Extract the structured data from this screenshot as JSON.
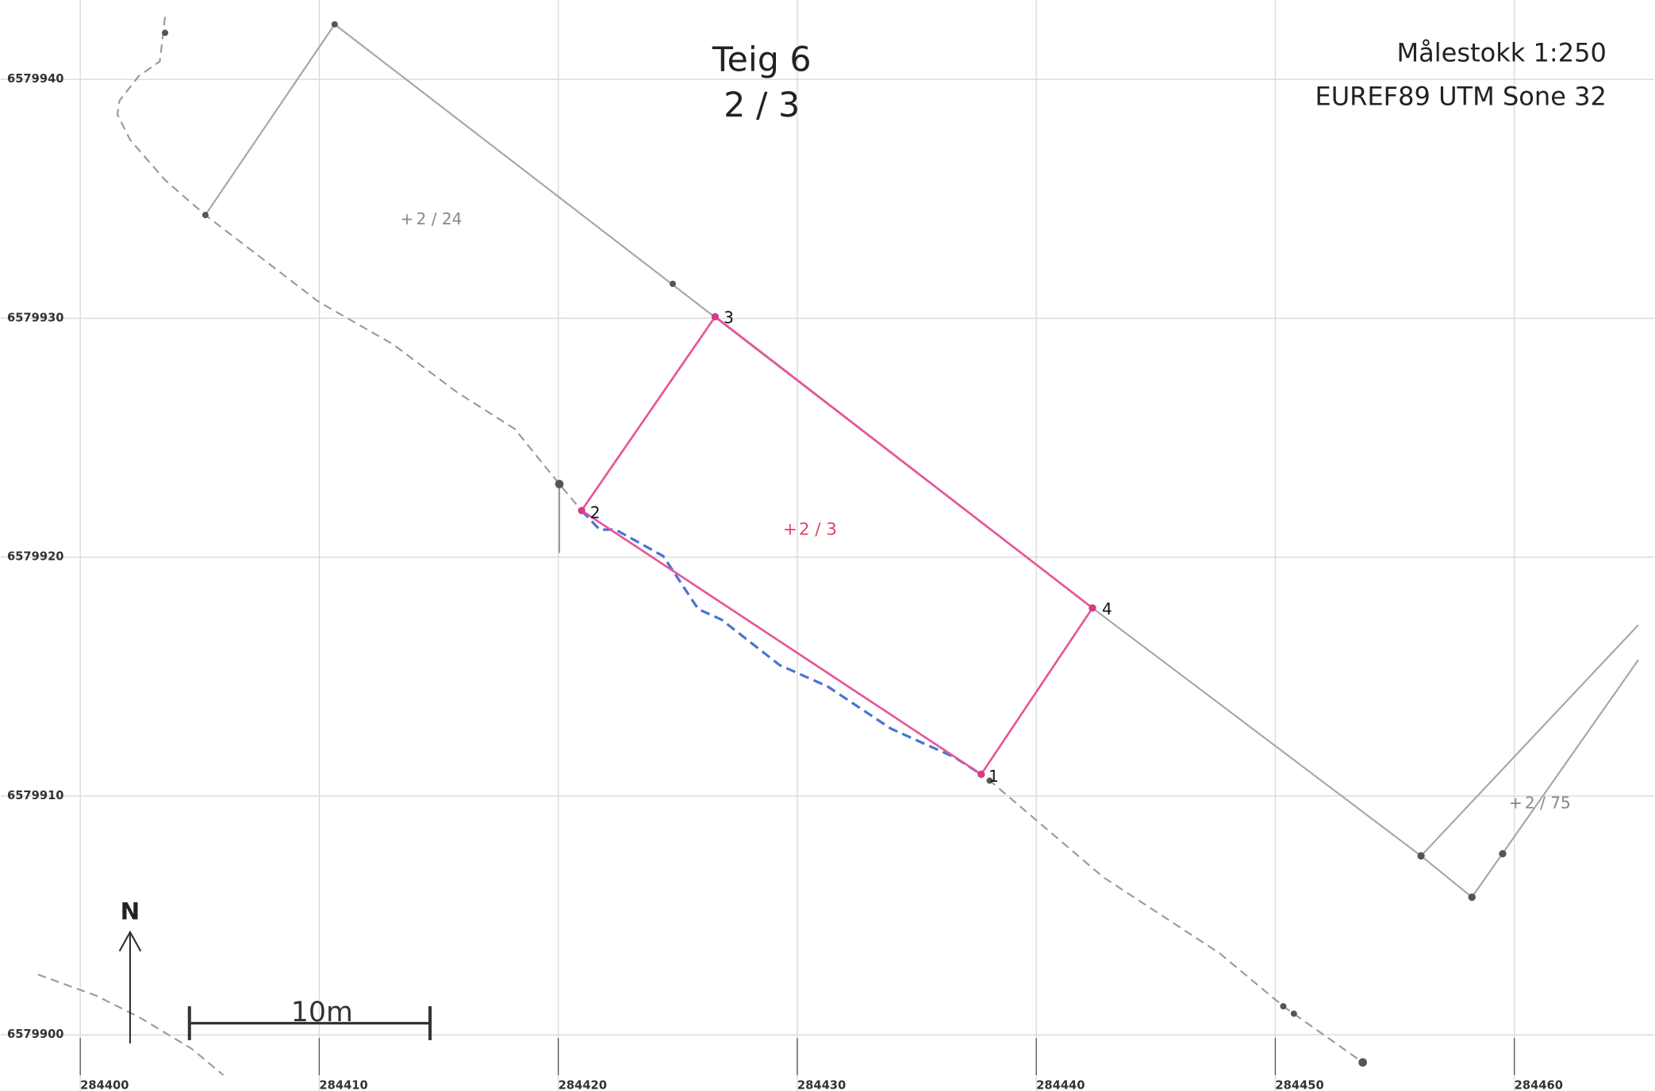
{
  "header": {
    "title": "Teig 6",
    "subtitle": "2 / 3"
  },
  "info": {
    "scale": "Målestokk 1:250",
    "crs": "EUREF89 UTM Sone 32"
  },
  "grid": {
    "eastings": [
      284400,
      284410,
      284420,
      284430,
      284440,
      284450,
      284460
    ],
    "northings": [
      6579940,
      6579930,
      6579920,
      6579910,
      6579900
    ]
  },
  "parcels": [
    {
      "label": "2 / 24"
    },
    {
      "label": "2 / 3"
    },
    {
      "label": "2 / 75"
    }
  ],
  "points": [
    "1",
    "2",
    "3",
    "4"
  ],
  "scale_bar": "10m",
  "north": "N"
}
